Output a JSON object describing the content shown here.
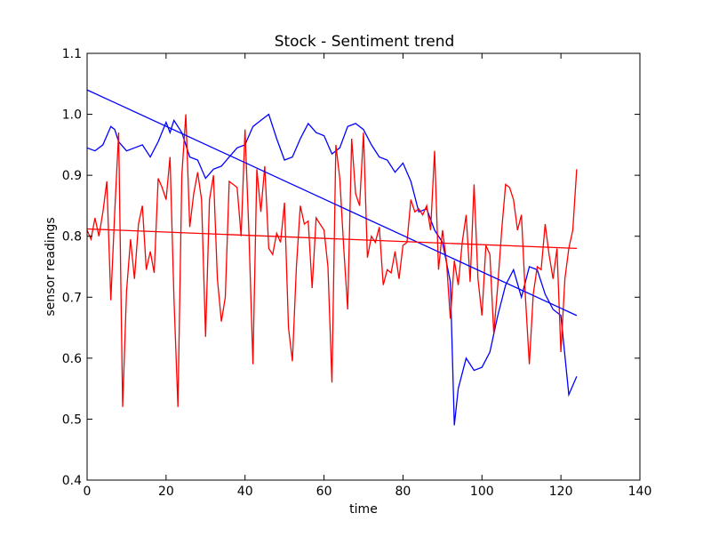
{
  "chart_data": {
    "type": "line",
    "title": "Stock - Sentiment trend",
    "xlabel": "time",
    "ylabel": "sensor readings",
    "xlim": [
      0,
      140
    ],
    "ylim": [
      0.4,
      1.1
    ],
    "x_ticks": [
      0,
      20,
      40,
      60,
      80,
      100,
      120,
      140
    ],
    "y_ticks": [
      0.4,
      0.5,
      0.6,
      0.7,
      0.8,
      0.9,
      1.0,
      1.1
    ],
    "x_tick_labels": [
      "0",
      "20",
      "40",
      "60",
      "80",
      "100",
      "120",
      "140"
    ],
    "y_tick_labels": [
      "0.4",
      "0.5",
      "0.6",
      "0.7",
      "0.8",
      "0.9",
      "1.0",
      "1.1"
    ],
    "grid": false,
    "legend": "none",
    "series": [
      {
        "color": "#0000ff",
        "kind": "series",
        "x": [
          0,
          2,
          4,
          6,
          7,
          8,
          10,
          12,
          14,
          16,
          18,
          20,
          21,
          22,
          24,
          26,
          28,
          30,
          32,
          34,
          36,
          38,
          40,
          42,
          44,
          46,
          48,
          50,
          52,
          54,
          56,
          58,
          60,
          62,
          64,
          66,
          68,
          70,
          72,
          74,
          76,
          78,
          80,
          82,
          84,
          86,
          88,
          90,
          92,
          93,
          94,
          96,
          98,
          100,
          102,
          104,
          106,
          108,
          110,
          112,
          114,
          116,
          118,
          120,
          122,
          124
        ],
        "y": [
          0.945,
          0.94,
          0.95,
          0.98,
          0.975,
          0.955,
          0.94,
          0.945,
          0.95,
          0.93,
          0.955,
          0.987,
          0.97,
          0.99,
          0.97,
          0.93,
          0.925,
          0.895,
          0.91,
          0.915,
          0.93,
          0.945,
          0.95,
          0.98,
          0.99,
          1.0,
          0.96,
          0.925,
          0.93,
          0.96,
          0.985,
          0.97,
          0.965,
          0.935,
          0.945,
          0.98,
          0.985,
          0.975,
          0.95,
          0.93,
          0.925,
          0.905,
          0.92,
          0.89,
          0.84,
          0.845,
          0.81,
          0.79,
          0.725,
          0.49,
          0.55,
          0.6,
          0.58,
          0.585,
          0.61,
          0.67,
          0.72,
          0.745,
          0.7,
          0.75,
          0.745,
          0.705,
          0.68,
          0.67,
          0.54,
          0.57
        ]
      },
      {
        "color": "#ff0000",
        "kind": "series",
        "x": [
          0,
          1,
          2,
          3,
          4,
          5,
          6,
          7,
          8,
          9,
          10,
          11,
          12,
          13,
          14,
          15,
          16,
          17,
          18,
          19,
          20,
          21,
          22,
          23,
          24,
          25,
          26,
          27,
          28,
          29,
          30,
          31,
          32,
          33,
          34,
          35,
          36,
          37,
          38,
          39,
          40,
          41,
          42,
          43,
          44,
          45,
          46,
          47,
          48,
          49,
          50,
          51,
          52,
          53,
          54,
          55,
          56,
          57,
          58,
          59,
          60,
          61,
          62,
          63,
          64,
          65,
          66,
          67,
          68,
          69,
          70,
          71,
          72,
          73,
          74,
          75,
          76,
          77,
          78,
          79,
          80,
          81,
          82,
          83,
          84,
          85,
          86,
          87,
          88,
          89,
          90,
          91,
          92,
          93,
          94,
          95,
          96,
          97,
          98,
          99,
          100,
          101,
          102,
          103,
          104,
          105,
          106,
          107,
          108,
          109,
          110,
          111,
          112,
          113,
          114,
          115,
          116,
          117,
          118,
          119,
          120,
          121,
          122,
          123,
          124
        ],
        "y": [
          0.81,
          0.795,
          0.83,
          0.8,
          0.84,
          0.89,
          0.695,
          0.84,
          0.97,
          0.52,
          0.71,
          0.795,
          0.73,
          0.82,
          0.85,
          0.745,
          0.775,
          0.74,
          0.895,
          0.88,
          0.86,
          0.93,
          0.7,
          0.52,
          0.9,
          1.0,
          0.815,
          0.87,
          0.905,
          0.86,
          0.635,
          0.86,
          0.9,
          0.73,
          0.66,
          0.7,
          0.89,
          0.885,
          0.88,
          0.8,
          0.975,
          0.8,
          0.59,
          0.91,
          0.84,
          0.915,
          0.78,
          0.77,
          0.805,
          0.79,
          0.855,
          0.65,
          0.595,
          0.75,
          0.85,
          0.82,
          0.825,
          0.715,
          0.83,
          0.82,
          0.81,
          0.75,
          0.56,
          0.95,
          0.895,
          0.78,
          0.68,
          0.96,
          0.87,
          0.85,
          0.97,
          0.765,
          0.8,
          0.79,
          0.815,
          0.72,
          0.745,
          0.74,
          0.775,
          0.73,
          0.785,
          0.79,
          0.86,
          0.84,
          0.845,
          0.835,
          0.85,
          0.81,
          0.94,
          0.745,
          0.81,
          0.76,
          0.665,
          0.76,
          0.72,
          0.79,
          0.835,
          0.725,
          0.885,
          0.73,
          0.67,
          0.785,
          0.77,
          0.64,
          0.72,
          0.81,
          0.885,
          0.88,
          0.86,
          0.81,
          0.835,
          0.7,
          0.59,
          0.705,
          0.75,
          0.745,
          0.82,
          0.77,
          0.73,
          0.78,
          0.61,
          0.73,
          0.78,
          0.81,
          0.91
        ]
      },
      {
        "color": "#0000ff",
        "kind": "trend",
        "x": [
          0,
          124
        ],
        "y": [
          1.04,
          0.67
        ]
      },
      {
        "color": "#ff0000",
        "kind": "trend",
        "x": [
          0,
          124
        ],
        "y": [
          0.812,
          0.78
        ]
      }
    ]
  }
}
